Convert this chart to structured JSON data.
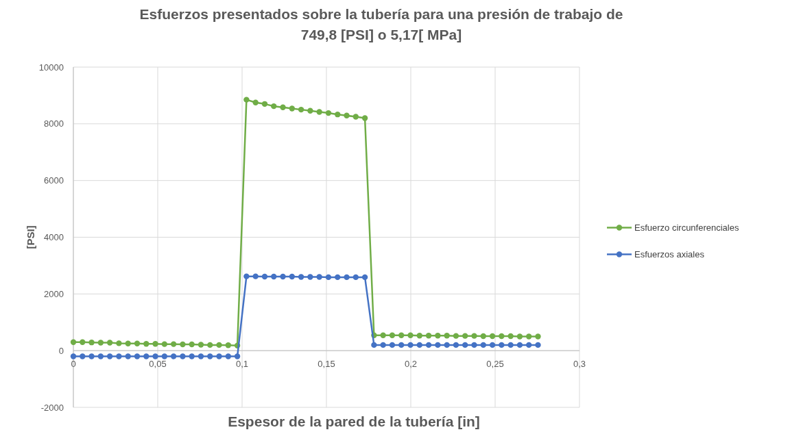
{
  "chart_data": {
    "type": "line",
    "title": "Esfuerzos presentados sobre la tubería para una presión de trabajo de\n749,8 [PSI] o 5,17[ MPa]",
    "xlabel": "Espesor de la pared de la tubería [in]",
    "ylabel": "[PSI]",
    "x": [
      0,
      0.0054,
      0.0108,
      0.0162,
      0.0216,
      0.027,
      0.0324,
      0.0378,
      0.0432,
      0.0486,
      0.054,
      0.0594,
      0.0648,
      0.0702,
      0.0756,
      0.081,
      0.0864,
      0.0918,
      0.0972,
      0.1026,
      0.108,
      0.1134,
      0.1188,
      0.1242,
      0.1296,
      0.135,
      0.1404,
      0.1458,
      0.1512,
      0.1566,
      0.162,
      0.1674,
      0.1728,
      0.1782,
      0.1836,
      0.189,
      0.1944,
      0.1998,
      0.2052,
      0.2106,
      0.216,
      0.2214,
      0.2268,
      0.2322,
      0.2376,
      0.243,
      0.2484,
      0.2538,
      0.2592,
      0.2646,
      0.27,
      0.2754
    ],
    "series": [
      {
        "name": "Esfuerzo circunferenciales",
        "color": "#70ad47",
        "values": [
          300,
          300,
          290,
          280,
          280,
          260,
          250,
          250,
          240,
          240,
          230,
          230,
          220,
          220,
          210,
          200,
          200,
          190,
          180,
          8850,
          8750,
          8700,
          8620,
          8580,
          8540,
          8500,
          8460,
          8420,
          8380,
          8330,
          8290,
          8250,
          8200,
          540,
          540,
          540,
          540,
          540,
          530,
          530,
          530,
          530,
          520,
          520,
          520,
          510,
          510,
          510,
          510,
          500,
          500,
          500
        ]
      },
      {
        "name": "Esfuerzos axiales",
        "color": "#4472c4",
        "values": [
          -200,
          -200,
          -200,
          -200,
          -200,
          -200,
          -200,
          -200,
          -200,
          -200,
          -200,
          -200,
          -200,
          -200,
          -200,
          -200,
          -200,
          -200,
          -200,
          2620,
          2620,
          2610,
          2610,
          2610,
          2610,
          2600,
          2600,
          2600,
          2590,
          2590,
          2590,
          2590,
          2590,
          200,
          200,
          200,
          200,
          200,
          200,
          200,
          200,
          200,
          200,
          200,
          200,
          200,
          200,
          200,
          200,
          200,
          200,
          200
        ]
      }
    ],
    "xlim": [
      0,
      0.3
    ],
    "xticks": [
      0,
      {
        "value": 0.05,
        "label": "0,05"
      },
      {
        "value": 0.1,
        "label": "0,1"
      },
      {
        "value": 0.15,
        "label": "0,15"
      },
      {
        "value": 0.2,
        "label": "0,2"
      },
      {
        "value": 0.25,
        "label": "0,25"
      },
      {
        "value": 0.3,
        "label": "0,3"
      }
    ],
    "ylim": [
      -2000,
      10000
    ],
    "yticks": [
      -2000,
      0,
      2000,
      4000,
      6000,
      8000,
      10000
    ],
    "grid": true,
    "legend": "right",
    "marker": "circle",
    "line_style": "solid"
  }
}
